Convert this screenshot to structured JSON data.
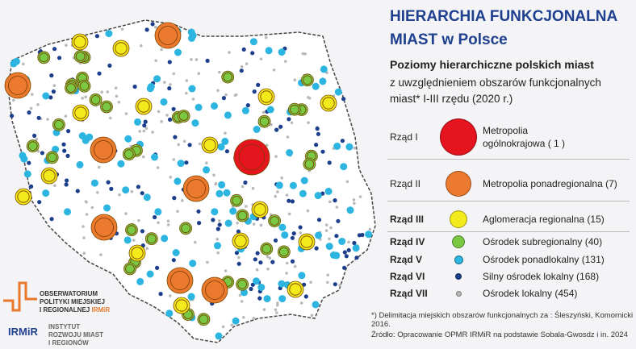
{
  "title": {
    "line1": "HIERARCHIA FUNKCJONALNA",
    "line2": "MIAST w Polsce"
  },
  "subtitle": "Poziomy hierarchiczne polskich miast",
  "subtitle2": "z uwzględnieniem obszarów funkcjonalnych miast* I-III rzędu (2020 r.)",
  "legend": [
    {
      "rank": "Rząd I",
      "label": "Metropolia ogólnokrajowa ( 1 )",
      "color": "#e5141f",
      "count": 1
    },
    {
      "rank": "Rząd II",
      "label": "Metropolia ponadregionalna (7)",
      "color": "#ec7a2e",
      "count": 7
    },
    {
      "rank": "Rząd III",
      "label": "Aglomeracja regionalna (15)",
      "color": "#f2ea1a",
      "count": 15
    },
    {
      "rank": "Rząd IV",
      "label": "Ośrodek subregionalny (40)",
      "color": "#7ac943",
      "count": 40
    },
    {
      "rank": "Rząd V",
      "label": "Ośrodek ponadlokalny (131)",
      "color": "#2bb5e0",
      "count": 131
    },
    {
      "rank": "Rząd VI",
      "label": "Silny ośrodek lokalny (168)",
      "color": "#1c3f8c",
      "count": 168
    },
    {
      "rank": "Rząd VII",
      "label": "Ośrodek lokalny (454)",
      "color": "#b9b9b9",
      "count": 454
    }
  ],
  "footnote": "*) Delimitacja miejskich obszarów funkcjonalnych za : Śleszyński, Komornicki 2016.",
  "source": "Źródło: Opracowanie OPMR IRMiR na podstawie Sobala-Gwosdz i in. 2024",
  "logo1": {
    "l1": "OBSERWATORIUM",
    "l2": "POLITYKI MIEJSKIEJ",
    "l3": "I REGIONALNEJ",
    "brand": "IRMiR"
  },
  "logo2": {
    "mark": "IRMiR",
    "l1": "INSTYTUT",
    "l2": "ROZWOJU MIAST",
    "l3": "I REGIONÓW"
  }
}
